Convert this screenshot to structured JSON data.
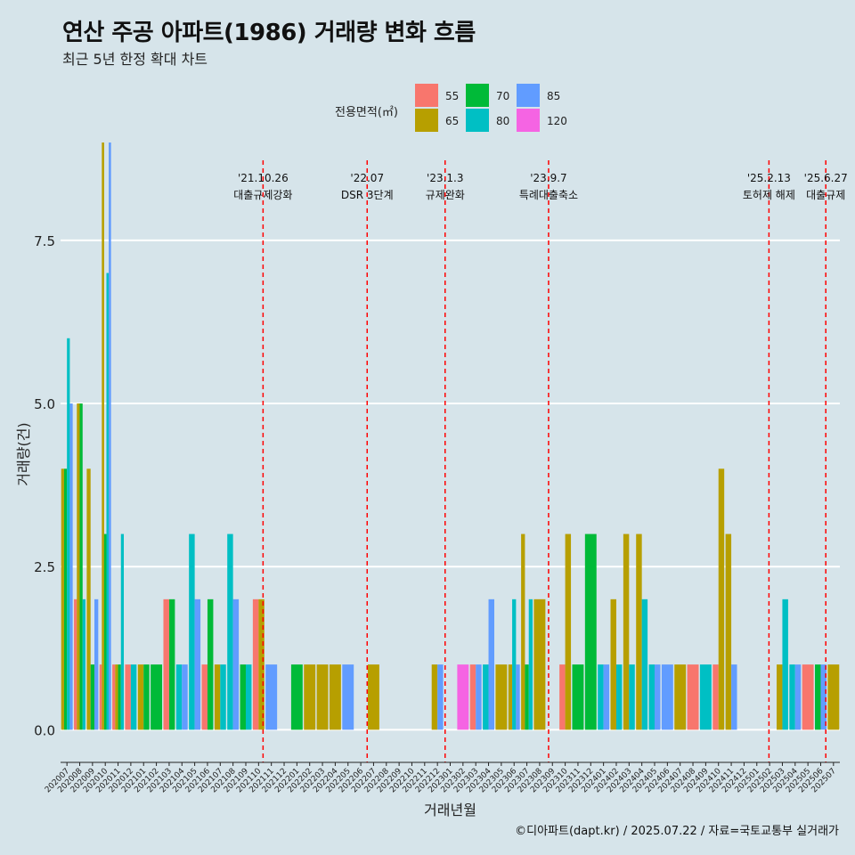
{
  "title": "연산 주공 아파트(1986) 거래량 변화 흐름",
  "subtitle": "최근 5년 한정 확대 차트",
  "caption": "©디아파트(dapt.kr) / 2025.07.22 / 자료=국토교통부 실거래가",
  "legend": {
    "title": "전용면적(㎡)",
    "items": [
      {
        "label": "55",
        "color": "#f8766d"
      },
      {
        "label": "65",
        "color": "#b79f00"
      },
      {
        "label": "70",
        "color": "#00ba38"
      },
      {
        "label": "80",
        "color": "#00bfc4"
      },
      {
        "label": "85",
        "color": "#619cff"
      },
      {
        "label": "120",
        "color": "#f564e3"
      }
    ]
  },
  "chart_data": {
    "type": "bar",
    "xlabel": "거래년월",
    "ylabel": "거래량(건)",
    "ylim": [
      -0.5,
      9
    ],
    "yticks": [
      0.0,
      2.5,
      5.0,
      7.5
    ],
    "ytick_labels": [
      "0.0",
      "2.5",
      "5.0",
      "7.5"
    ],
    "categories": [
      "202007",
      "202008",
      "202009",
      "202010",
      "202011",
      "202012",
      "202101",
      "202102",
      "202103",
      "202104",
      "202105",
      "202106",
      "202107",
      "202108",
      "202109",
      "202110",
      "202111",
      "202112",
      "202201",
      "202202",
      "202203",
      "202204",
      "202205",
      "202206",
      "202207",
      "202208",
      "202209",
      "202210",
      "202211",
      "202212",
      "202301",
      "202302",
      "202303",
      "202304",
      "202305",
      "202306",
      "202307",
      "202308",
      "202309",
      "202310",
      "202311",
      "202312",
      "202401",
      "202402",
      "202403",
      "202404",
      "202405",
      "202406",
      "202407",
      "202408",
      "202409",
      "202410",
      "202411",
      "202412",
      "202501",
      "202502",
      "202503",
      "202504",
      "202505",
      "202506",
      "202507"
    ],
    "series": [
      {
        "name": "55",
        "color": "#f8766d",
        "values": [
          0,
          2,
          0,
          1,
          1,
          1,
          0,
          0,
          2,
          0,
          0,
          1,
          0,
          0,
          0,
          2,
          0,
          0,
          0,
          0,
          0,
          0,
          0,
          0,
          0,
          0,
          0,
          0,
          0,
          0,
          0,
          0,
          1,
          0,
          0,
          0,
          0,
          0,
          0,
          1,
          0,
          0,
          0,
          0,
          0,
          0,
          0,
          0,
          0,
          1,
          0,
          1,
          0,
          0,
          0,
          0,
          0,
          0,
          1,
          0,
          0
        ]
      },
      {
        "name": "65",
        "color": "#b79f00",
        "values": [
          4,
          5,
          4,
          9,
          1,
          0,
          1,
          0,
          0,
          0,
          0,
          0,
          1,
          0,
          0,
          2,
          0,
          0,
          0,
          1,
          1,
          1,
          0,
          0,
          1,
          0,
          0,
          0,
          0,
          1,
          0,
          0,
          0,
          0,
          1,
          1,
          3,
          2,
          0,
          3,
          0,
          0,
          0,
          2,
          3,
          3,
          0,
          0,
          1,
          0,
          0,
          4,
          3,
          0,
          0,
          0,
          1,
          0,
          0,
          0,
          1
        ]
      },
      {
        "name": "70",
        "color": "#00ba38",
        "values": [
          4,
          5,
          1,
          3,
          1,
          0,
          1,
          1,
          2,
          0,
          0,
          2,
          0,
          0,
          1,
          0,
          0,
          0,
          1,
          0,
          0,
          0,
          0,
          0,
          0,
          0,
          0,
          0,
          0,
          0,
          0,
          0,
          0,
          0,
          0,
          0,
          1,
          0,
          0,
          0,
          1,
          3,
          0,
          0,
          0,
          0,
          0,
          0,
          0,
          0,
          0,
          0,
          0,
          0,
          0,
          0,
          0,
          0,
          0,
          1,
          0
        ]
      },
      {
        "name": "80",
        "color": "#00bfc4",
        "values": [
          6,
          2,
          0,
          7,
          3,
          1,
          0,
          0,
          0,
          1,
          3,
          0,
          1,
          3,
          1,
          0,
          0,
          0,
          0,
          0,
          0,
          0,
          0,
          0,
          0,
          0,
          0,
          0,
          0,
          0,
          0,
          0,
          0,
          1,
          0,
          2,
          2,
          0,
          0,
          0,
          0,
          0,
          1,
          1,
          1,
          2,
          1,
          0,
          0,
          0,
          1,
          0,
          0,
          0,
          0,
          0,
          2,
          1,
          0,
          0,
          0
        ]
      },
      {
        "name": "85",
        "color": "#619cff",
        "values": [
          5,
          0,
          2,
          9,
          0,
          0,
          0,
          0,
          0,
          1,
          2,
          0,
          0,
          2,
          0,
          0,
          1,
          0,
          0,
          0,
          0,
          0,
          1,
          0,
          0,
          0,
          0,
          0,
          0,
          1,
          0,
          0,
          1,
          2,
          0,
          1,
          0,
          0,
          0,
          0,
          0,
          0,
          1,
          0,
          0,
          0,
          1,
          1,
          0,
          0,
          0,
          0,
          1,
          0,
          0,
          0,
          0,
          1,
          0,
          1,
          0
        ]
      },
      {
        "name": "120",
        "color": "#f564e3",
        "values": [
          0,
          0,
          0,
          0,
          0,
          0,
          0,
          0,
          0,
          0,
          0,
          0,
          0,
          0,
          0,
          0,
          0,
          0,
          0,
          0,
          0,
          0,
          0,
          0,
          0,
          0,
          0,
          0,
          0,
          0,
          0,
          1,
          0,
          0,
          0,
          0,
          0,
          0,
          0,
          0,
          0,
          0,
          0,
          0,
          0,
          0,
          0,
          0,
          0,
          0,
          0,
          0,
          0,
          0,
          0,
          0,
          0,
          0,
          0,
          0,
          0
        ]
      }
    ],
    "annotations": [
      {
        "date": "'21.10.26",
        "event": "대출규제강화",
        "x_month": "202110",
        "pos": 0.85
      },
      {
        "date": "'22.07",
        "event": "DSR 3단계",
        "x_month": "202207",
        "pos": 0.0
      },
      {
        "date": "'23.1.3",
        "event": "규제완화",
        "x_month": "202301",
        "pos": 0.1
      },
      {
        "date": "'23.9.7",
        "event": "특례대출축소",
        "x_month": "202309",
        "pos": 0.2
      },
      {
        "date": "'25.2.13",
        "event": "토허제 해제",
        "x_month": "202502",
        "pos": 0.45
      },
      {
        "date": "'25.6.27",
        "event": "대출규제",
        "x_month": "202506",
        "pos": 0.9
      }
    ]
  }
}
